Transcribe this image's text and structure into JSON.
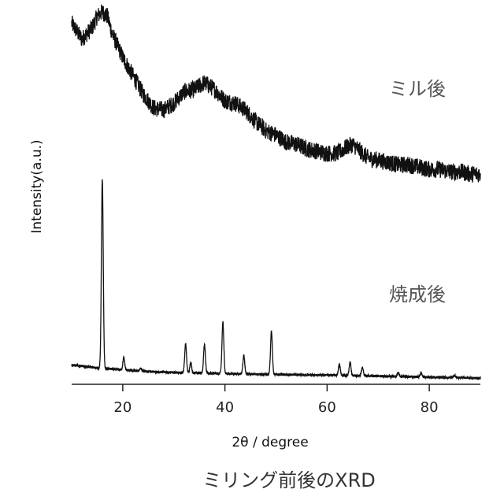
{
  "chart_data": {
    "type": "line",
    "title": "ミリング前後のXRD",
    "xlabel": "2θ / degree",
    "ylabel": "Intensity(a.u.)",
    "xlim": [
      10,
      90
    ],
    "xticks": [
      20,
      40,
      60,
      80
    ],
    "tick_labels": [
      "20",
      "40",
      "60",
      "80"
    ],
    "grid": false,
    "y_ticks_shown": false,
    "series": [
      {
        "name": "ミル後",
        "noisy": true,
        "x": [
          10,
          12,
          14,
          15,
          16,
          17,
          18,
          20,
          22,
          24,
          26,
          28,
          30,
          32,
          34,
          36,
          38,
          40,
          42,
          44,
          46,
          48,
          50,
          52,
          54,
          56,
          58,
          60,
          62,
          64,
          65,
          66,
          68,
          70,
          72,
          74,
          76,
          78,
          80,
          82,
          84,
          86,
          88,
          90
        ],
        "y": [
          0.95,
          0.88,
          0.93,
          0.98,
          1.0,
          0.98,
          0.9,
          0.8,
          0.72,
          0.64,
          0.58,
          0.57,
          0.6,
          0.65,
          0.66,
          0.69,
          0.66,
          0.61,
          0.6,
          0.57,
          0.52,
          0.48,
          0.46,
          0.43,
          0.42,
          0.4,
          0.39,
          0.38,
          0.38,
          0.41,
          0.42,
          0.4,
          0.36,
          0.35,
          0.34,
          0.33,
          0.33,
          0.32,
          0.31,
          0.31,
          0.3,
          0.3,
          0.29,
          0.29
        ]
      },
      {
        "name": "焼成後",
        "noisy": false,
        "baseline": [
          [
            10,
            0.095
          ],
          [
            15,
            0.08
          ],
          [
            20,
            0.07
          ],
          [
            25,
            0.062
          ],
          [
            30,
            0.058
          ],
          [
            40,
            0.052
          ],
          [
            50,
            0.048
          ],
          [
            60,
            0.045
          ],
          [
            70,
            0.04
          ],
          [
            80,
            0.035
          ],
          [
            90,
            0.03
          ]
        ],
        "peaks": [
          {
            "x": 16.0,
            "h": 0.92
          },
          {
            "x": 20.2,
            "h": 0.06
          },
          {
            "x": 23.5,
            "h": 0.015
          },
          {
            "x": 32.3,
            "h": 0.14
          },
          {
            "x": 33.3,
            "h": 0.05
          },
          {
            "x": 36.0,
            "h": 0.14
          },
          {
            "x": 39.6,
            "h": 0.25
          },
          {
            "x": 43.7,
            "h": 0.09
          },
          {
            "x": 49.1,
            "h": 0.21
          },
          {
            "x": 62.4,
            "h": 0.055
          },
          {
            "x": 64.5,
            "h": 0.065
          },
          {
            "x": 66.9,
            "h": 0.04
          },
          {
            "x": 73.9,
            "h": 0.018
          },
          {
            "x": 78.4,
            "h": 0.02
          },
          {
            "x": 85.0,
            "h": 0.01
          }
        ]
      }
    ]
  },
  "colors": {
    "trace": "#111111",
    "axis": "#222222",
    "label_gray": "#555555"
  }
}
